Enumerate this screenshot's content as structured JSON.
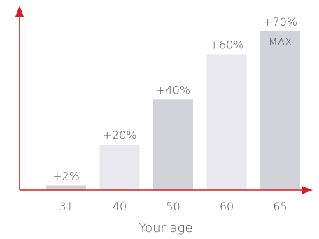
{
  "chart_data": {
    "type": "bar",
    "categories": [
      "31",
      "40",
      "50",
      "60",
      "65"
    ],
    "values": [
      2,
      20,
      40,
      60,
      70
    ],
    "data_labels": [
      "+2%",
      "+20%",
      "+40%",
      "+60%",
      "+70%"
    ],
    "max_label": "MAX",
    "xlabel": "Your age",
    "ylabel": "",
    "ylim": [
      0,
      70
    ],
    "grid": false,
    "colors": {
      "axis": "#d0202a",
      "bar_dark": "#d2d2d9",
      "bar_light": "#e8e8ee",
      "max_label": "#ffffff",
      "text": "#555555"
    },
    "bar_color_keys": [
      "bar_dark",
      "bar_light",
      "bar_dark",
      "bar_light",
      "bar_dark"
    ]
  }
}
